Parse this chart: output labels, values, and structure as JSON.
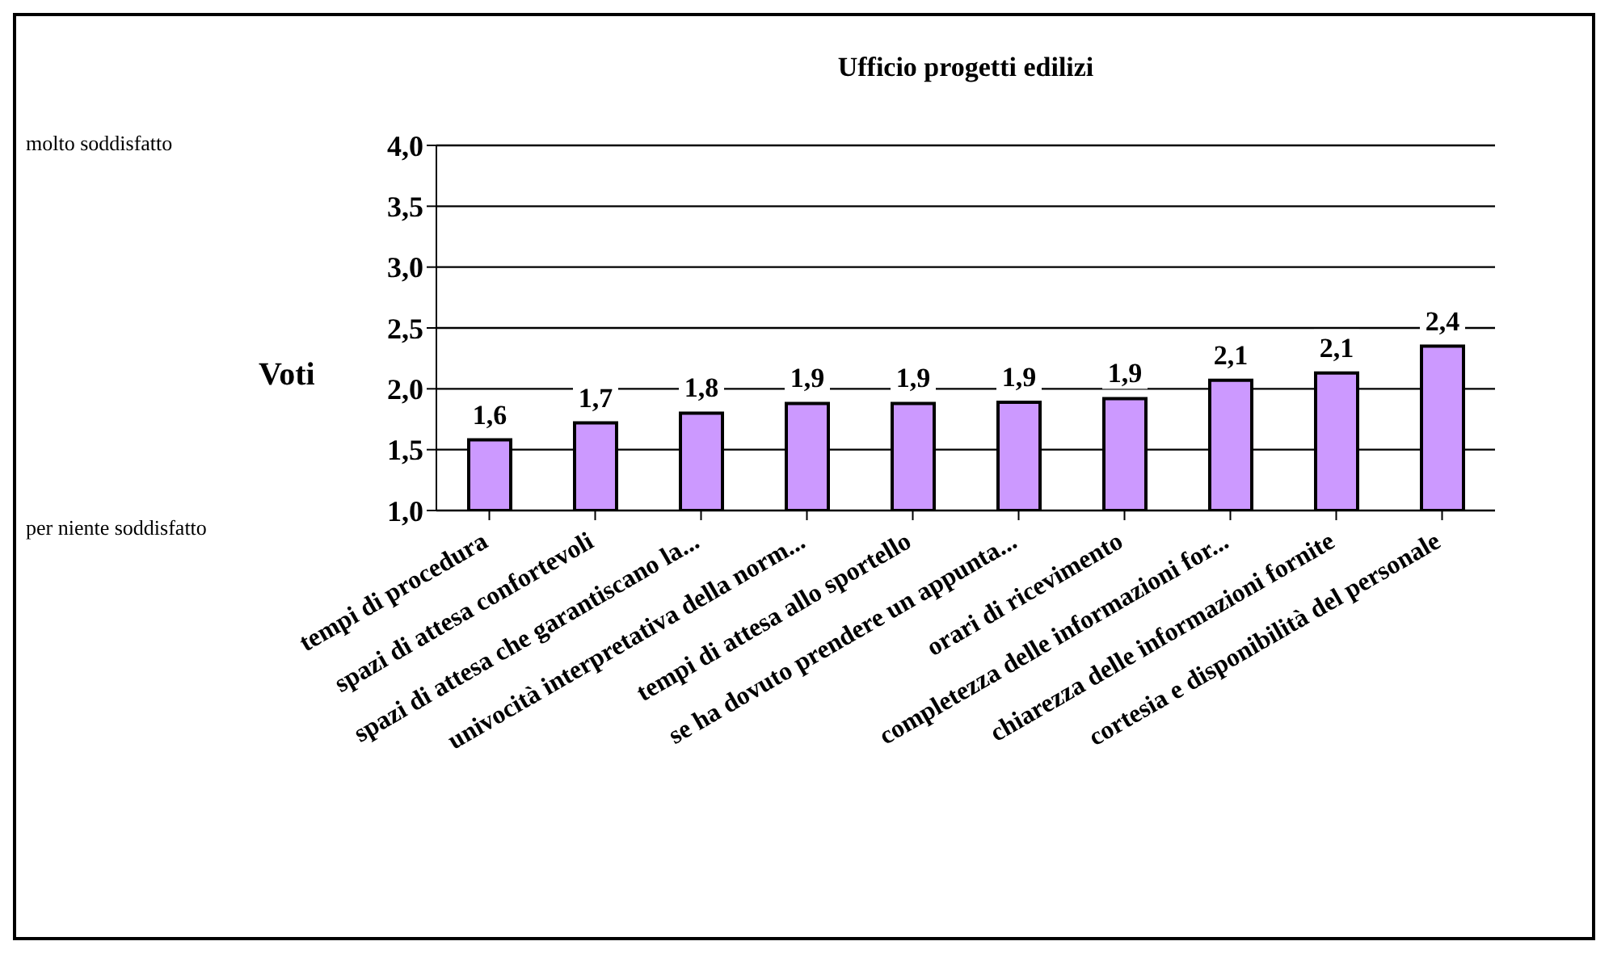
{
  "chart_data": {
    "type": "bar",
    "title": "Ufficio progetti edilizi",
    "ylabel": "Voti",
    "categories": [
      "tempi di procedura",
      "spazi di attesa confortevoli",
      "spazi di attesa che garantiscano la...",
      "univocità interpretativa della norm...",
      "tempi di attesa allo sportello",
      "se ha dovuto prendere un appunta...",
      "orari di ricevimento",
      "completezza delle informazioni for...",
      "chiarezza delle informazioni fornite",
      "cortesia e disponibilità del personale"
    ],
    "values": [
      1.58,
      1.72,
      1.8,
      1.88,
      1.88,
      1.89,
      1.92,
      2.07,
      2.13,
      2.35
    ],
    "value_labels": [
      "1,6",
      "1,7",
      "1,8",
      "1,9",
      "1,9",
      "1,9",
      "1,9",
      "2,1",
      "2,1",
      "2,4"
    ],
    "color": "#cc99ff",
    "ylim": [
      1,
      4
    ],
    "yticks": [
      {
        "value": 1,
        "label": "1,0"
      },
      {
        "value": 1.5,
        "label": "1,5"
      },
      {
        "value": 2,
        "label": "2,0"
      },
      {
        "value": 2.5,
        "label": "2,5"
      },
      {
        "value": 3,
        "label": "3,0"
      },
      {
        "value": 3.5,
        "label": "3,5"
      },
      {
        "value": 4,
        "label": "4,0"
      }
    ],
    "grid": "y",
    "annotations": [
      "molto soddisfatto",
      "per niente soddisfatto"
    ]
  }
}
